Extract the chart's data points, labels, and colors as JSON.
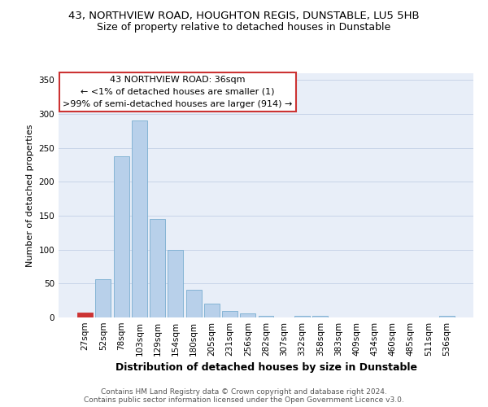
{
  "title": "43, NORTHVIEW ROAD, HOUGHTON REGIS, DUNSTABLE, LU5 5HB",
  "subtitle": "Size of property relative to detached houses in Dunstable",
  "xlabel": "Distribution of detached houses by size in Dunstable",
  "ylabel": "Number of detached properties",
  "categories": [
    "27sqm",
    "52sqm",
    "78sqm",
    "103sqm",
    "129sqm",
    "154sqm",
    "180sqm",
    "205sqm",
    "231sqm",
    "256sqm",
    "282sqm",
    "307sqm",
    "332sqm",
    "358sqm",
    "383sqm",
    "409sqm",
    "434sqm",
    "460sqm",
    "485sqm",
    "511sqm",
    "536sqm"
  ],
  "values": [
    7,
    57,
    238,
    291,
    145,
    100,
    41,
    20,
    10,
    6,
    3,
    0,
    3,
    2,
    0,
    0,
    0,
    0,
    0,
    0,
    2
  ],
  "bar_color": "#b8d0ea",
  "bar_edge_color": "#7aaed0",
  "highlight_bar_index": 0,
  "highlight_color": "#cc3333",
  "highlight_edge_color": "#cc3333",
  "annotation_text": "43 NORTHVIEW ROAD: 36sqm\n← <1% of detached houses are smaller (1)\n>99% of semi-detached houses are larger (914) →",
  "annotation_box_color": "white",
  "annotation_box_edge_color": "#cc3333",
  "ylim": [
    0,
    360
  ],
  "yticks": [
    0,
    50,
    100,
    150,
    200,
    250,
    300,
    350
  ],
  "grid_color": "#c8d4e8",
  "background_color": "#e8eef8",
  "footer_line1": "Contains HM Land Registry data © Crown copyright and database right 2024.",
  "footer_line2": "Contains public sector information licensed under the Open Government Licence v3.0.",
  "title_fontsize": 9.5,
  "subtitle_fontsize": 9,
  "xlabel_fontsize": 9,
  "ylabel_fontsize": 8,
  "tick_fontsize": 7.5,
  "annotation_fontsize": 8,
  "footer_fontsize": 6.5
}
